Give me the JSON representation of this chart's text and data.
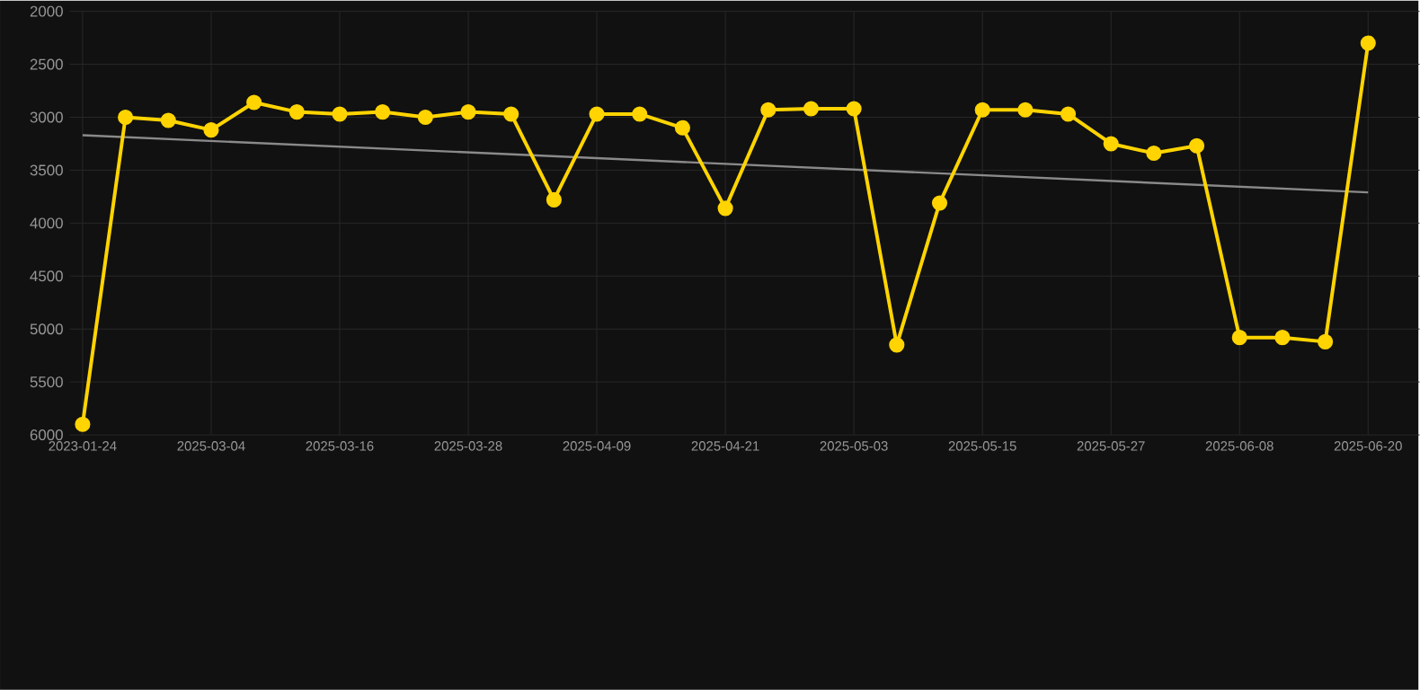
{
  "chart_data": {
    "type": "line",
    "categories": [
      "2023-01-24",
      null,
      null,
      "2025-03-04",
      null,
      null,
      "2025-03-16",
      null,
      null,
      "2025-03-28",
      null,
      null,
      "2025-04-09",
      null,
      null,
      "2025-04-21",
      null,
      null,
      "2025-05-03",
      null,
      null,
      "2025-05-15",
      null,
      null,
      "2025-05-27",
      null,
      null,
      "2025-06-08",
      null,
      null,
      "2025-06-20"
    ],
    "series": [
      {
        "color": "#ffd400",
        "marker": "circle",
        "values": [
          5900,
          3000,
          3030,
          3120,
          2860,
          2950,
          2970,
          2950,
          3000,
          2950,
          2970,
          3780,
          2970,
          2970,
          3100,
          3860,
          2930,
          2920,
          2920,
          5150,
          3810,
          2930,
          2930,
          2970,
          3250,
          3340,
          3270,
          5080,
          5080,
          5120,
          2300
        ]
      },
      {
        "type": "line",
        "color": "#8a8a8a",
        "marker": "none",
        "values": [
          3170,
          null,
          null,
          null,
          null,
          null,
          null,
          null,
          null,
          null,
          null,
          null,
          null,
          null,
          null,
          null,
          null,
          null,
          null,
          null,
          null,
          null,
          null,
          null,
          null,
          null,
          null,
          null,
          null,
          null,
          3710
        ]
      }
    ],
    "ylim": [
      6000,
      2000
    ],
    "yticks": [
      2000,
      2500,
      3000,
      3500,
      4000,
      4500,
      5000,
      5500,
      6000
    ],
    "grid": true,
    "line_style": "solid"
  }
}
